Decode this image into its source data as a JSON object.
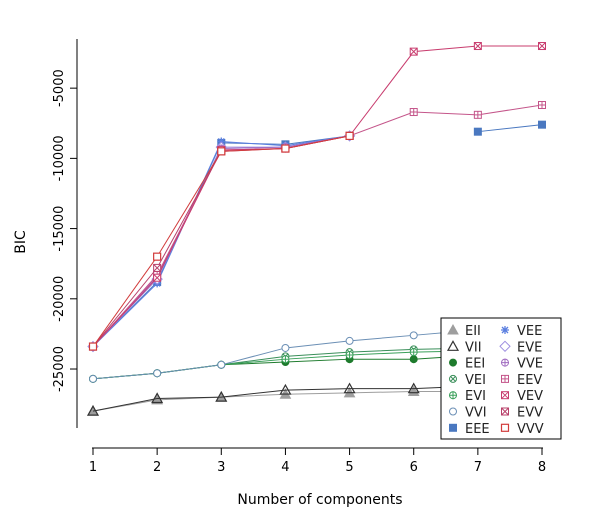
{
  "chart_data": {
    "type": "line",
    "title": "",
    "xlabel": "Number of components",
    "ylabel": "BIC",
    "x": [
      1,
      2,
      3,
      4,
      5,
      6,
      7,
      8
    ],
    "xticks": [
      "1",
      "2",
      "3",
      "4",
      "5",
      "6",
      "7",
      "8"
    ],
    "xlim": [
      0.8,
      8.3
    ],
    "ylim": [
      -29200,
      -1500
    ],
    "yticks": [
      -25000,
      -20000,
      -15000,
      -10000,
      -5000
    ],
    "ytick_labels": [
      "-25000",
      "-20000",
      "-15000",
      "-10000",
      "-5000"
    ],
    "grid": false,
    "legend_position": "bottom-right",
    "series": [
      {
        "name": "EII",
        "marker": "triangle-filled",
        "color": "#9e9e9e",
        "values": [
          -28000,
          -27200,
          -27000,
          -26800,
          -26700,
          -26600,
          -26600,
          -26500
        ]
      },
      {
        "name": "VII",
        "marker": "triangle-open",
        "color": "#333333",
        "values": [
          -28000,
          -27100,
          -27000,
          -26500,
          -26400,
          -26400,
          -26200,
          -26000
        ]
      },
      {
        "name": "EEI",
        "marker": "circle-filled",
        "color": "#1e7b2d",
        "values": [
          -25700,
          -25300,
          -24700,
          -24500,
          -24300,
          -24300,
          -24000,
          -23900
        ]
      },
      {
        "name": "VEI",
        "marker": "circle-x",
        "color": "#3a8f5a",
        "values": [
          -25700,
          -25300,
          -24700,
          -24100,
          -23800,
          -23600,
          -23500,
          -23500
        ]
      },
      {
        "name": "EVI",
        "marker": "circle-plus",
        "color": "#3aa05a",
        "values": [
          -25700,
          -25300,
          -24700,
          -24300,
          -24000,
          -23800,
          -23700,
          -23700
        ]
      },
      {
        "name": "VVI",
        "marker": "circle-open",
        "color": "#6b8fb5",
        "values": [
          -25700,
          -25300,
          -24700,
          -23500,
          -23000,
          -22600,
          -22200,
          -22000
        ]
      },
      {
        "name": "EEE",
        "marker": "square-filled",
        "color": "#4a78c0",
        "values": [
          -23400,
          -18800,
          -8900,
          -9000,
          -8400,
          null,
          -8100,
          -7600
        ]
      },
      {
        "name": "VEE",
        "marker": "asterisk",
        "color": "#5b7fe0",
        "values": [
          -23400,
          -18900,
          -8800,
          -9100,
          -8400,
          null,
          null,
          null
        ]
      },
      {
        "name": "EVE",
        "marker": "diamond-open",
        "color": "#9c8ce0",
        "values": [
          -23400,
          -18600,
          -9200,
          -9200,
          -8400,
          null,
          null,
          null
        ]
      },
      {
        "name": "VVE",
        "marker": "circle-plus",
        "color": "#a06bc0",
        "values": [
          -23400,
          -18400,
          -9300,
          -9200,
          -8400,
          null,
          null,
          null
        ]
      },
      {
        "name": "EEV",
        "marker": "square-plus",
        "color": "#c4558a",
        "values": [
          -23400,
          -18300,
          -9400,
          -9300,
          -8400,
          -6700,
          -6900,
          -6200
        ]
      },
      {
        "name": "VEV",
        "marker": "square-x",
        "color": "#c83c6e",
        "values": [
          -23400,
          -18500,
          -9400,
          -9300,
          -8400,
          -2400,
          -2000,
          -2000
        ]
      },
      {
        "name": "EVV",
        "marker": "square-x",
        "color": "#b8406a",
        "values": [
          -23400,
          -17800,
          -9500,
          -9300,
          -8400,
          null,
          null,
          null
        ]
      },
      {
        "name": "VVV",
        "marker": "square-open",
        "color": "#d23c3c",
        "values": [
          -23400,
          -17000,
          -9500,
          -9300,
          -8400,
          null,
          null,
          null
        ]
      }
    ]
  }
}
